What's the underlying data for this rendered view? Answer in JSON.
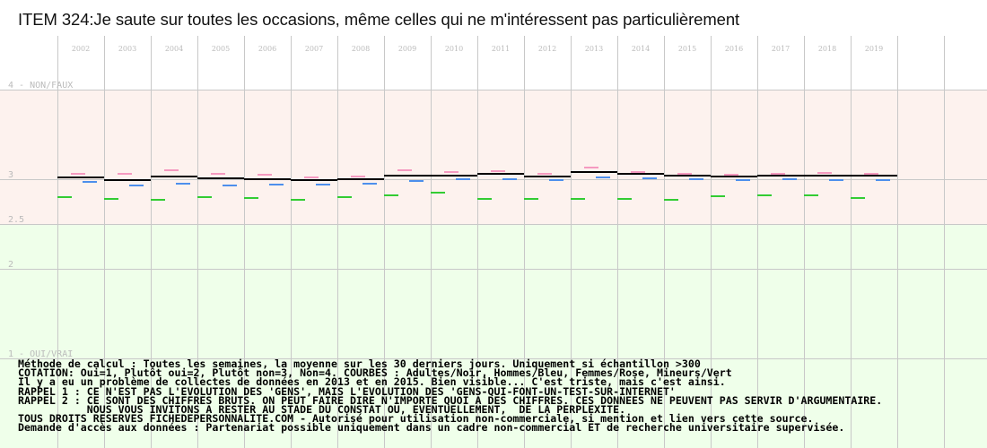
{
  "title": "ITEM 324:Je saute sur toutes les occasions, même celles qui ne m'intéressent pas particulièrement",
  "colors": {
    "zone_top": "#fdf2ee",
    "zone_bottom": "#efffea",
    "grid": "#c8c8c8",
    "axis_text": "#bbbbbb",
    "adultes": "#000000",
    "hommes": "#4d8fec",
    "femmes": "#f59ac0",
    "mineurs": "#33cc33"
  },
  "chart_data": {
    "type": "line",
    "x": [
      "2002",
      "2003",
      "2004",
      "2005",
      "2006",
      "2007",
      "2008",
      "2009",
      "2010",
      "2011",
      "2012",
      "2013",
      "2014",
      "2015",
      "2016",
      "2017",
      "2018",
      "2019"
    ],
    "ylim": [
      1,
      4
    ],
    "yticks": [
      {
        "value": 4,
        "label": "4 - NON/FAUX"
      },
      {
        "value": 3,
        "label": "3"
      },
      {
        "value": 2.5,
        "label": "2.5"
      },
      {
        "value": 2,
        "label": "2"
      },
      {
        "value": 1,
        "label": "1 - OUI/VRAI"
      }
    ],
    "background_split": 2.5,
    "grid": true,
    "series": [
      {
        "key": "adultes",
        "values": [
          3.02,
          2.99,
          3.03,
          3.01,
          3.0,
          2.99,
          3.0,
          3.04,
          3.04,
          3.06,
          3.03,
          3.08,
          3.06,
          3.04,
          3.03,
          3.04,
          3.04,
          3.04
        ]
      },
      {
        "key": "hommes",
        "values": [
          2.97,
          2.93,
          2.95,
          2.93,
          2.94,
          2.94,
          2.95,
          2.98,
          3.0,
          3.0,
          2.99,
          3.02,
          3.01,
          3.0,
          2.99,
          3.0,
          2.99,
          2.99
        ]
      },
      {
        "key": "femmes",
        "values": [
          3.06,
          3.06,
          3.1,
          3.06,
          3.05,
          3.02,
          3.03,
          3.1,
          3.08,
          3.09,
          3.06,
          3.13,
          3.08,
          3.06,
          3.05,
          3.06,
          3.07,
          3.06
        ]
      },
      {
        "key": "mineurs",
        "values": [
          2.8,
          2.78,
          2.77,
          2.8,
          2.79,
          2.77,
          2.8,
          2.82,
          2.85,
          2.78,
          2.78,
          2.78,
          2.78,
          2.77,
          2.81,
          2.82,
          2.82,
          2.79
        ]
      }
    ]
  },
  "notes": [
    "Méthode de calcul : Toutes les semaines, la moyenne sur les 30 derniers jours. Uniquement si échantillon >300",
    "COTATION: Oui=1, Plutôt oui=2, Plutôt non=3, Non=4. COURBES : Adultes/Noir, Hommes/Bleu, Femmes/Rose, Mineurs/Vert",
    "Il y a eu un problème de collectes de données en 2013 et en 2015. Bien visible... C'est triste, mais c'est ainsi.",
    "RAPPEL 1 : CE N'EST PAS L'EVOLUTION DES 'GENS', MAIS L'EVOLUTION DES 'GENS-QUI-FONT-UN-TEST-SUR-INTERNET'",
    "RAPPEL 2 : CE SONT DES CHIFFRES BRUTS. ON PEUT FAIRE DIRE N'IMPORTE QUOI A DES CHIFFRES. CES DONNEES NE PEUVENT PAS SERVIR D'ARGUMENTAIRE.",
    "           NOUS VOUS INVITONS A RESTER AU STADE DU CONSTAT OU, EVENTUELLEMENT,  DE LA PERPLEXITE.",
    "TOUS DROITS RESERVES FICHEDEPERSONNALITE.COM - Autorisé pour utilisation non-commerciale, si mention et lien vers cette source.",
    "Demande d'accès aux données : Partenariat possible uniquement dans un cadre non-commercial ET de recherche universitaire supervisée."
  ]
}
